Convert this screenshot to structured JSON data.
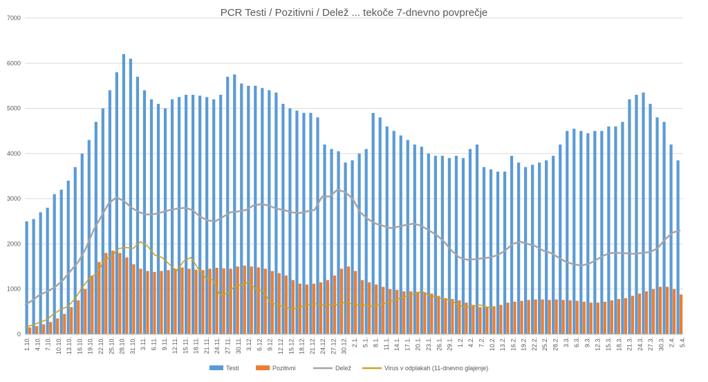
{
  "chart_data": {
    "type": "bar",
    "title": "PCR Testi / Pozitivni / Delež ... tekoče 7-dnevno povprečje",
    "ylim": [
      0,
      7000
    ],
    "yticks": [
      0,
      1000,
      2000,
      3000,
      4000,
      5000,
      6000,
      7000
    ],
    "grid": true,
    "legend_position": "bottom",
    "x_labels": [
      "1.10.",
      "4.10.",
      "7.10.",
      "10.10.",
      "13.10.",
      "16.10.",
      "19.10.",
      "22.10.",
      "25.10.",
      "28.10.",
      "31.10.",
      "3.11.",
      "6.11.",
      "9.11.",
      "12.11.",
      "15.11.",
      "18.11.",
      "21.11.",
      "24.11.",
      "27.11.",
      "30.11.",
      "3.12.",
      "6.12.",
      "9.12.",
      "12.12.",
      "15.12.",
      "18.12.",
      "21.12.",
      "24.12.",
      "27.12.",
      "30.12.",
      "2.1.",
      "5.1.",
      "8.1.",
      "11.1.",
      "14.1.",
      "17.1.",
      "20.1.",
      "23.1.",
      "26.1.",
      "29.1.",
      "1.2.",
      "4.2.",
      "7.2.",
      "10.2.",
      "13.2.",
      "16.2.",
      "19.2.",
      "22.2.",
      "25.2.",
      "28.2.",
      "3.3.",
      "6.3.",
      "9.3.",
      "12.3.",
      "15.3.",
      "18.3.",
      "21.3.",
      "24.3.",
      "27.3.",
      "30.3.",
      "2.4.",
      "5.4."
    ],
    "series": [
      {
        "name": "Testi",
        "type": "bar",
        "color": "#5b9bd5",
        "values": [
          2500,
          2550,
          2700,
          2800,
          3100,
          3200,
          3400,
          3700,
          4000,
          4300,
          4700,
          5000,
          5400,
          5800,
          6200,
          6100,
          5700,
          5400,
          5200,
          5100,
          5000,
          5200,
          5250,
          5300,
          5300,
          5280,
          5250,
          5200,
          5300,
          5700,
          5750,
          5550,
          5500,
          5500,
          5450,
          5400,
          5350,
          5100,
          5000,
          4950,
          4900,
          4900,
          4800,
          4200,
          4100,
          4050,
          3800,
          3850,
          4000,
          4100,
          4900,
          4800,
          4600,
          4500,
          4400,
          4300,
          4200,
          4150,
          4000,
          3950,
          3950,
          3900,
          3950,
          3900,
          4100,
          4200,
          3700,
          3650,
          3600,
          3600,
          3950,
          3800,
          3700,
          3750,
          3800,
          3850,
          3950,
          4200,
          4500,
          4550,
          4500,
          4450,
          4500,
          4500,
          4600,
          4600,
          4700,
          5200,
          5300,
          5350,
          5100,
          4800,
          4700,
          4200,
          3850
        ]
      },
      {
        "name": "Pozitivni",
        "type": "bar",
        "color": "#ed7d31",
        "values": [
          150,
          180,
          220,
          270,
          350,
          450,
          600,
          750,
          1000,
          1300,
          1600,
          1800,
          1850,
          1800,
          1700,
          1550,
          1450,
          1400,
          1380,
          1400,
          1420,
          1450,
          1480,
          1450,
          1430,
          1420,
          1450,
          1470,
          1460,
          1450,
          1500,
          1520,
          1500,
          1480,
          1450,
          1400,
          1350,
          1300,
          1200,
          1120,
          1100,
          1120,
          1150,
          1200,
          1300,
          1450,
          1500,
          1400,
          1200,
          1150,
          1100,
          1050,
          1000,
          980,
          950,
          950,
          940,
          930,
          900,
          850,
          800,
          780,
          750,
          700,
          650,
          600,
          600,
          620,
          650,
          700,
          720,
          740,
          760,
          770,
          770,
          760,
          770,
          760,
          750,
          740,
          720,
          700,
          700,
          720,
          750,
          780,
          800,
          850,
          900,
          950,
          1000,
          1050,
          1050,
          1000,
          880
        ]
      },
      {
        "name": "Delež",
        "type": "line",
        "color": "#a5a5a5",
        "values": [
          650,
          750,
          880,
          950,
          1050,
          1200,
          1400,
          1600,
          1900,
          2300,
          2600,
          2900,
          3030,
          2950,
          2800,
          2700,
          2650,
          2660,
          2700,
          2750,
          2780,
          2800,
          2750,
          2600,
          2520,
          2500,
          2600,
          2700,
          2720,
          2750,
          2850,
          2880,
          2850,
          2780,
          2750,
          2700,
          2680,
          2720,
          2750,
          3050,
          3050,
          3200,
          3150,
          3000,
          2700,
          2550,
          2450,
          2400,
          2350,
          2380,
          2420,
          2450,
          2400,
          2300,
          2200,
          2050,
          1850,
          1700,
          1650,
          1660,
          1680,
          1700,
          1750,
          1850,
          2000,
          2050,
          2000,
          1950,
          1850,
          1800,
          1700,
          1600,
          1550,
          1520,
          1560,
          1650,
          1750,
          1800,
          1800,
          1790,
          1780,
          1800,
          1820,
          1900,
          2100,
          2250,
          2300
        ]
      },
      {
        "name": "Virus v odplakah (11-dnevno glajenje)",
        "type": "line",
        "color": "#c9a227",
        "values": [
          150,
          200,
          260,
          320,
          450,
          550,
          620,
          800,
          1050,
          1250,
          1350,
          1650,
          1720,
          1900,
          1920,
          1900,
          2050,
          1950,
          1750,
          1700,
          1550,
          1400,
          1620,
          1700,
          1450,
          1250,
          1200,
          870,
          900,
          1050,
          1100,
          1150,
          1000,
          950,
          700,
          650,
          600,
          550,
          600,
          650,
          680,
          650,
          660,
          650,
          700,
          680,
          650,
          640,
          630,
          650,
          700,
          750,
          800,
          850,
          900,
          950,
          860,
          820,
          780,
          750,
          640,
          600,
          620,
          650,
          600,
          580
        ]
      }
    ],
    "legend": [
      "Testi",
      "Pozitivni",
      "Delež",
      "Virus v odplakah (11-dnevno glajenje)"
    ]
  }
}
